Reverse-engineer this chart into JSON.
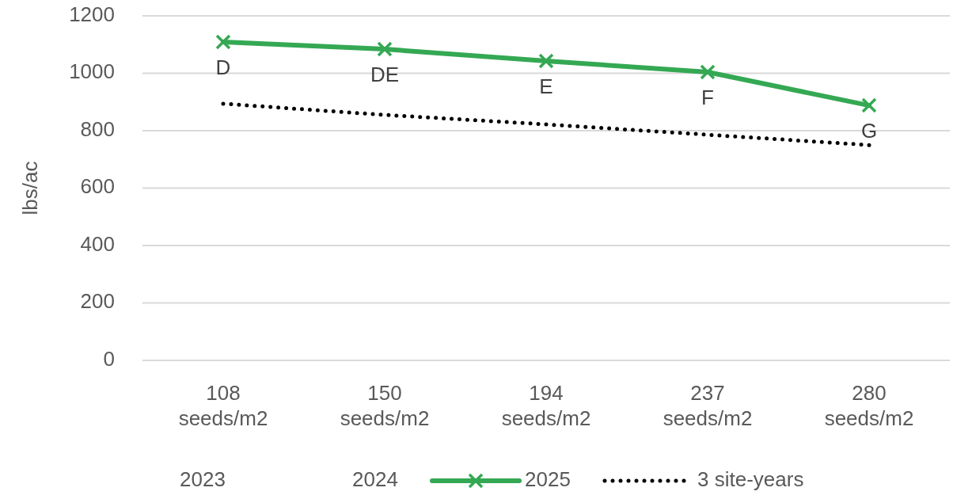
{
  "chart_data": {
    "type": "line",
    "ylabel": "lbs/ac",
    "categories": [
      "108 seeds/m2",
      "150 seeds/m2",
      "194 seeds/m2",
      "237 seeds/m2",
      "280 seeds/m2"
    ],
    "series": [
      {
        "name": "2023",
        "values": [
          null,
          null,
          null,
          null,
          null
        ]
      },
      {
        "name": "2024",
        "values": [
          null,
          null,
          null,
          null,
          null
        ]
      },
      {
        "name": "2025",
        "color": "#34a853",
        "values": [
          1109,
          1084,
          1043,
          1004,
          888
        ],
        "marker": "cross",
        "line_style": "solid"
      },
      {
        "name": "3 site-years",
        "color": "#000000",
        "values": [
          894,
          855,
          822,
          786,
          750
        ],
        "marker": "none",
        "line_style": "dotted"
      }
    ],
    "ylim": [
      0,
      1200
    ],
    "yticks": [
      0,
      200,
      400,
      600,
      800,
      1000,
      1200
    ],
    "grid": "y",
    "legend": "bottom",
    "annotations": [
      {
        "text": "D",
        "x": "108 seeds/m2",
        "y": 1109
      },
      {
        "text": "DE",
        "x": "150 seeds/m2",
        "y": 1084
      },
      {
        "text": "E",
        "x": "194 seeds/m2",
        "y": 1043
      },
      {
        "text": "F",
        "x": "237 seeds/m2",
        "y": 1004
      },
      {
        "text": "G",
        "x": "280 seeds/m2",
        "y": 888
      }
    ]
  }
}
